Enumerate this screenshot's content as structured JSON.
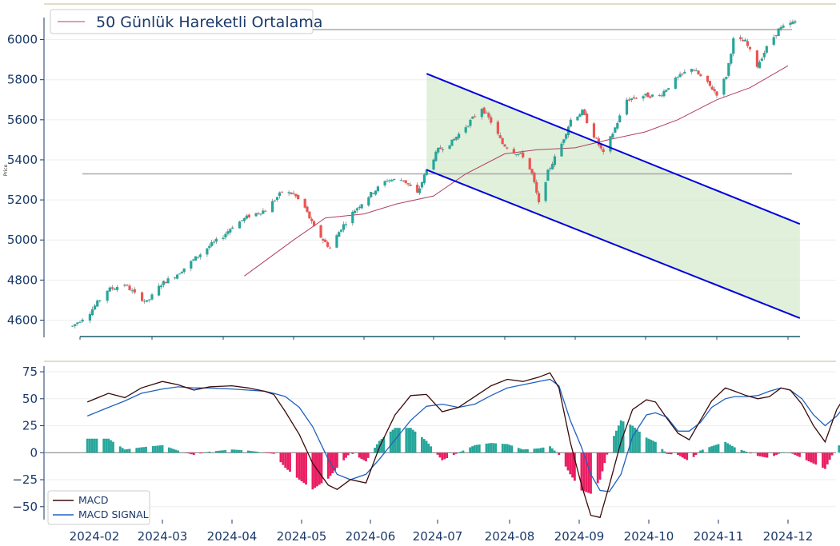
{
  "chart_data": [
    {
      "type": "candlestick",
      "ylabel": "Price",
      "ylim": [
        4530,
        6110
      ],
      "y_ticks": [
        "4600",
        "4800",
        "5000",
        "5200",
        "5400",
        "5600",
        "5800",
        "6000"
      ],
      "y_tick_values": [
        4600,
        4800,
        5000,
        5200,
        5400,
        5600,
        5800,
        6000
      ],
      "x_ticks": [
        "2024-02",
        "2024-03",
        "2024-04",
        "2024-05",
        "2024-06",
        "2024-07",
        "2024-08",
        "2024-09",
        "2024-10",
        "2024-11",
        "2024-12"
      ],
      "legend": {
        "ma_label": "50 Günlük Hareketli Ortalama",
        "placement": "top-left"
      },
      "horizontal_levels": [
        6050,
        5330
      ],
      "channel": {
        "upper": [
          [
            "2024-06-28",
            5830
          ],
          [
            "2024-12-06",
            5080
          ]
        ],
        "lower": [
          [
            "2024-06-28",
            5350
          ],
          [
            "2024-12-06",
            4610
          ]
        ],
        "shade_start": "2024-06-28"
      },
      "anchors": [
        [
          "2024-01-29",
          4570
        ],
        [
          "2024-02-05",
          4640
        ],
        [
          "2024-02-12",
          4750
        ],
        [
          "2024-02-19",
          4780
        ],
        [
          "2024-02-23",
          4730
        ],
        [
          "2024-02-28",
          4690
        ],
        [
          "2024-03-05",
          4780
        ],
        [
          "2024-03-12",
          4830
        ],
        [
          "2024-03-19",
          4900
        ],
        [
          "2024-03-26",
          4970
        ],
        [
          "2024-04-01",
          5020
        ],
        [
          "2024-04-05",
          5070
        ],
        [
          "2024-04-12",
          5120
        ],
        [
          "2024-04-19",
          5150
        ],
        [
          "2024-04-26",
          5240
        ],
        [
          "2024-05-01",
          5230
        ],
        [
          "2024-05-06",
          5160
        ],
        [
          "2024-05-10",
          5060
        ],
        [
          "2024-05-14",
          5000
        ],
        [
          "2024-05-17",
          4960
        ],
        [
          "2024-05-22",
          5060
        ],
        [
          "2024-05-28",
          5150
        ],
        [
          "2024-06-04",
          5230
        ],
        [
          "2024-06-11",
          5300
        ],
        [
          "2024-06-18",
          5300
        ],
        [
          "2024-06-24",
          5230
        ],
        [
          "2024-06-28",
          5350
        ],
        [
          "2024-07-03",
          5450
        ],
        [
          "2024-07-09",
          5490
        ],
        [
          "2024-07-16",
          5580
        ],
        [
          "2024-07-22",
          5660
        ],
        [
          "2024-07-26",
          5590
        ],
        [
          "2024-07-31",
          5480
        ],
        [
          "2024-08-05",
          5440
        ],
        [
          "2024-08-09",
          5420
        ],
        [
          "2024-08-13",
          5330
        ],
        [
          "2024-08-16",
          5180
        ],
        [
          "2024-08-20",
          5340
        ],
        [
          "2024-08-26",
          5480
        ],
        [
          "2024-08-30",
          5600
        ],
        [
          "2024-09-04",
          5640
        ],
        [
          "2024-09-09",
          5520
        ],
        [
          "2024-09-13",
          5430
        ],
        [
          "2024-09-18",
          5560
        ],
        [
          "2024-09-23",
          5700
        ],
        [
          "2024-09-30",
          5720
        ],
        [
          "2024-10-07",
          5720
        ],
        [
          "2024-10-14",
          5800
        ],
        [
          "2024-10-21",
          5860
        ],
        [
          "2024-10-28",
          5780
        ],
        [
          "2024-11-01",
          5730
        ],
        [
          "2024-11-05",
          5820
        ],
        [
          "2024-11-08",
          6000
        ],
        [
          "2024-11-13",
          5990
        ],
        [
          "2024-11-18",
          5870
        ],
        [
          "2024-11-22",
          5960
        ],
        [
          "2024-11-27",
          6050
        ],
        [
          "2024-12-04",
          6090
        ]
      ],
      "moving_average": [
        [
          "2024-04-10",
          4820
        ],
        [
          "2024-05-01",
          5000
        ],
        [
          "2024-05-15",
          5110
        ],
        [
          "2024-06-01",
          5130
        ],
        [
          "2024-06-15",
          5180
        ],
        [
          "2024-07-01",
          5220
        ],
        [
          "2024-07-15",
          5330
        ],
        [
          "2024-08-01",
          5430
        ],
        [
          "2024-08-15",
          5450
        ],
        [
          "2024-09-01",
          5460
        ],
        [
          "2024-09-15",
          5500
        ],
        [
          "2024-10-01",
          5540
        ],
        [
          "2024-10-15",
          5600
        ],
        [
          "2024-11-01",
          5700
        ],
        [
          "2024-11-15",
          5760
        ],
        [
          "2024-12-01",
          5870
        ]
      ],
      "colors": {
        "up": "#26a69a",
        "down": "#ef5350",
        "ma": "#b04060",
        "channel": "#0000dd",
        "level": "#aaaaaa",
        "fill": "#cbe6c3"
      }
    },
    {
      "type": "line+bar",
      "ylim": [
        -62,
        78
      ],
      "y_ticks": [
        "75",
        "50",
        "25",
        "0",
        "−25",
        "−50"
      ],
      "y_tick_values": [
        75,
        50,
        25,
        0,
        -25,
        -50
      ],
      "legend": {
        "items": [
          "MACD",
          "MACD SIGNAL"
        ],
        "placement": "bottom-left"
      },
      "macd": [
        [
          "2024-01-29",
          47
        ],
        [
          "2024-02-07",
          55
        ],
        [
          "2024-02-14",
          51
        ],
        [
          "2024-02-21",
          60
        ],
        [
          "2024-03-01",
          66
        ],
        [
          "2024-03-08",
          63
        ],
        [
          "2024-03-15",
          58
        ],
        [
          "2024-03-22",
          61
        ],
        [
          "2024-04-01",
          62
        ],
        [
          "2024-04-08",
          60
        ],
        [
          "2024-04-15",
          57
        ],
        [
          "2024-04-19",
          54
        ],
        [
          "2024-04-24",
          38
        ],
        [
          "2024-04-30",
          17
        ],
        [
          "2024-05-06",
          -10
        ],
        [
          "2024-05-13",
          -30
        ],
        [
          "2024-05-17",
          -34
        ],
        [
          "2024-05-23",
          -25
        ],
        [
          "2024-05-30",
          -28
        ],
        [
          "2024-06-05",
          5
        ],
        [
          "2024-06-12",
          35
        ],
        [
          "2024-06-19",
          53
        ],
        [
          "2024-06-26",
          54
        ],
        [
          "2024-07-03",
          38
        ],
        [
          "2024-07-10",
          42
        ],
        [
          "2024-07-17",
          52
        ],
        [
          "2024-07-24",
          62
        ],
        [
          "2024-07-31",
          68
        ],
        [
          "2024-08-07",
          66
        ],
        [
          "2024-08-14",
          70
        ],
        [
          "2024-08-19",
          74
        ],
        [
          "2024-08-23",
          60
        ],
        [
          "2024-08-28",
          10
        ],
        [
          "2024-09-02",
          -30
        ],
        [
          "2024-09-06",
          -58
        ],
        [
          "2024-09-10",
          -60
        ],
        [
          "2024-09-14",
          -30
        ],
        [
          "2024-09-19",
          10
        ],
        [
          "2024-09-24",
          40
        ],
        [
          "2024-09-30",
          49
        ],
        [
          "2024-10-04",
          47
        ],
        [
          "2024-10-09",
          32
        ],
        [
          "2024-10-14",
          18
        ],
        [
          "2024-10-19",
          12
        ],
        [
          "2024-10-24",
          30
        ],
        [
          "2024-10-29",
          48
        ],
        [
          "2024-11-04",
          60
        ],
        [
          "2024-11-08",
          57
        ],
        [
          "2024-11-13",
          53
        ],
        [
          "2024-11-18",
          50
        ],
        [
          "2024-11-23",
          52
        ],
        [
          "2024-11-28",
          60
        ],
        [
          "2024-12-02",
          58
        ],
        [
          "2024-12-07",
          45
        ],
        [
          "2024-12-12",
          25
        ],
        [
          "2024-12-17",
          10
        ],
        [
          "2024-12-22",
          40
        ],
        [
          "2024-12-27",
          57
        ],
        [
          "2025-01-01",
          45
        ],
        [
          "2025-01-06",
          50
        ],
        [
          "2025-01-11",
          55
        ],
        [
          "2025-01-15",
          62
        ]
      ],
      "signal": [
        [
          "2024-01-29",
          34
        ],
        [
          "2024-02-07",
          42
        ],
        [
          "2024-02-14",
          48
        ],
        [
          "2024-02-21",
          55
        ],
        [
          "2024-03-01",
          59
        ],
        [
          "2024-03-08",
          61
        ],
        [
          "2024-03-15",
          60
        ],
        [
          "2024-03-22",
          60
        ],
        [
          "2024-04-01",
          59
        ],
        [
          "2024-04-08",
          58
        ],
        [
          "2024-04-15",
          57
        ],
        [
          "2024-04-19",
          55
        ],
        [
          "2024-04-24",
          52
        ],
        [
          "2024-04-30",
          42
        ],
        [
          "2024-05-06",
          24
        ],
        [
          "2024-05-13",
          -6
        ],
        [
          "2024-05-17",
          -20
        ],
        [
          "2024-05-23",
          -25
        ],
        [
          "2024-05-30",
          -20
        ],
        [
          "2024-06-05",
          -6
        ],
        [
          "2024-06-12",
          12
        ],
        [
          "2024-06-19",
          30
        ],
        [
          "2024-06-26",
          43
        ],
        [
          "2024-07-03",
          45
        ],
        [
          "2024-07-10",
          42
        ],
        [
          "2024-07-17",
          45
        ],
        [
          "2024-07-24",
          53
        ],
        [
          "2024-07-31",
          60
        ],
        [
          "2024-08-07",
          63
        ],
        [
          "2024-08-14",
          66
        ],
        [
          "2024-08-19",
          68
        ],
        [
          "2024-08-23",
          62
        ],
        [
          "2024-08-28",
          30
        ],
        [
          "2024-09-02",
          5
        ],
        [
          "2024-09-06",
          -20
        ],
        [
          "2024-09-10",
          -35
        ],
        [
          "2024-09-14",
          -36
        ],
        [
          "2024-09-19",
          -20
        ],
        [
          "2024-09-24",
          15
        ],
        [
          "2024-09-30",
          35
        ],
        [
          "2024-10-04",
          37
        ],
        [
          "2024-10-09",
          33
        ],
        [
          "2024-10-14",
          20
        ],
        [
          "2024-10-19",
          20
        ],
        [
          "2024-10-24",
          28
        ],
        [
          "2024-10-29",
          42
        ],
        [
          "2024-11-04",
          50
        ],
        [
          "2024-11-08",
          52
        ],
        [
          "2024-11-13",
          52
        ],
        [
          "2024-11-18",
          53
        ],
        [
          "2024-11-23",
          57
        ],
        [
          "2024-11-28",
          60
        ],
        [
          "2024-12-02",
          58
        ],
        [
          "2024-12-07",
          50
        ],
        [
          "2024-12-12",
          35
        ],
        [
          "2024-12-17",
          25
        ],
        [
          "2024-12-22",
          34
        ],
        [
          "2024-12-27",
          47
        ],
        [
          "2025-01-01",
          47
        ],
        [
          "2025-01-06",
          49
        ],
        [
          "2025-01-11",
          50
        ],
        [
          "2025-01-15",
          55
        ]
      ],
      "colors": {
        "macd": "#3a0a0a",
        "signal": "#2060c0",
        "pos": "#26a69a",
        "neg": "#e91e63",
        "zero": "#888888"
      }
    }
  ]
}
